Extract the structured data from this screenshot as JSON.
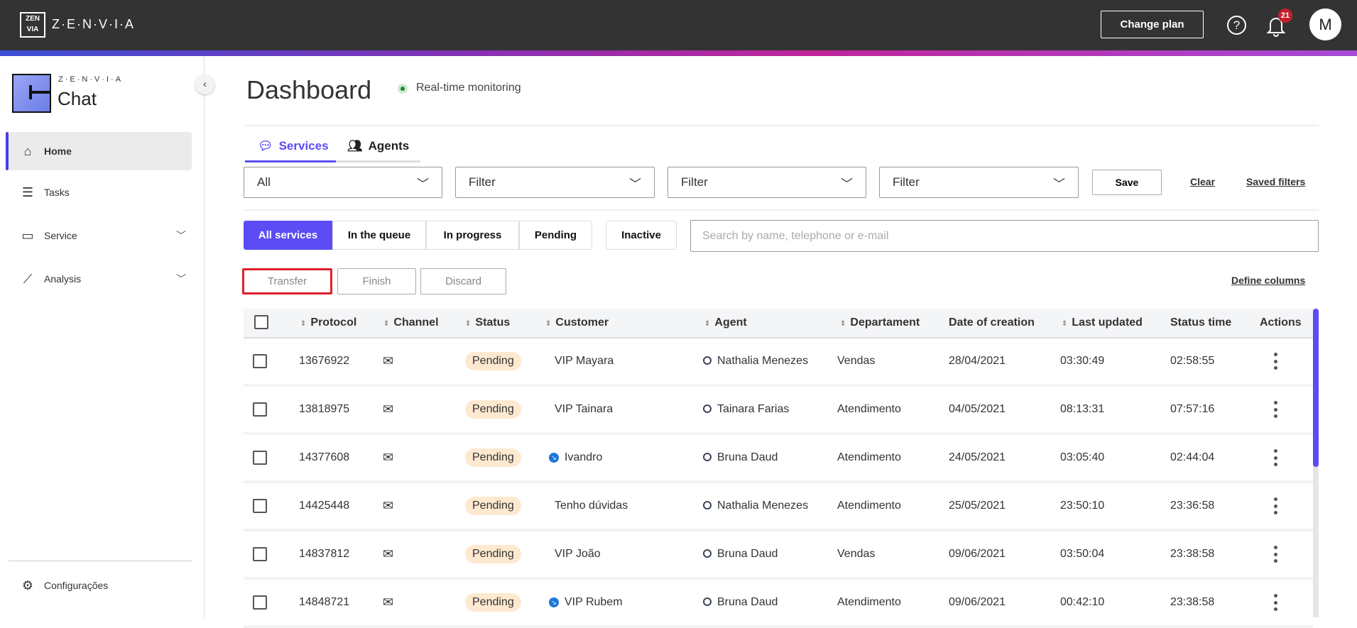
{
  "topbar": {
    "logo_glyph": "ZEN VIA",
    "brand": "Z·E·N·V·I·A",
    "change_plan": "Change plan",
    "help_icon": "question-circle-icon",
    "notifications_count": "21",
    "avatar_initial": "M"
  },
  "sidebar": {
    "product_brand": "Z·E·N·V·I·A",
    "product_name": "Chat",
    "items": [
      {
        "label": "Home",
        "icon": "home-icon",
        "active": true
      },
      {
        "label": "Tasks",
        "icon": "tasks-icon"
      },
      {
        "label": "Service",
        "icon": "chat-icon",
        "expandable": true
      },
      {
        "label": "Analysis",
        "icon": "chart-icon",
        "expandable": true
      }
    ],
    "settings": "Configurações"
  },
  "header": {
    "title": "Dashboard",
    "status": "Real-time monitoring"
  },
  "tabs": [
    {
      "label": "Services",
      "active": true
    },
    {
      "label": "Agents"
    }
  ],
  "filters": {
    "selects": [
      "All",
      "Filter",
      "Filter",
      "Filter"
    ],
    "save": "Save",
    "clear": "Clear",
    "saved_filters": "Saved filters"
  },
  "segments": [
    {
      "label": "All services",
      "active": true
    },
    {
      "label": "In the queue"
    },
    {
      "label": "In progress"
    },
    {
      "label": "Pending"
    }
  ],
  "inactive": "Inactive",
  "search": {
    "placeholder": "Search by name, telephone or e-mail",
    "value": ""
  },
  "actions": {
    "transfer": "Transfer",
    "finish": "Finish",
    "discard": "Discard",
    "define_columns": "Define columns"
  },
  "accent": "#5b4cf5",
  "table": {
    "columns": [
      "Protocol",
      "Channel",
      "Status",
      "Customer",
      "Agent",
      "Departament",
      "Date of creation",
      "Last updated",
      "Status time",
      "Actions"
    ],
    "rows": [
      {
        "protocol": "13676922",
        "channel": "email",
        "status": "Pending",
        "customer": "VIP Mayara",
        "transferred": false,
        "agent": "Nathalia Menezes",
        "department": "Vendas",
        "created": "28/04/2021",
        "updated": "03:30:49",
        "status_time": "02:58:55"
      },
      {
        "protocol": "13818975",
        "channel": "email",
        "status": "Pending",
        "customer": "VIP Tainara",
        "transferred": false,
        "agent": "Tainara Farias",
        "department": "Atendimento",
        "created": "04/05/2021",
        "updated": "08:13:31",
        "status_time": "07:57:16"
      },
      {
        "protocol": "14377608",
        "channel": "email",
        "status": "Pending",
        "customer": "Ivandro",
        "transferred": true,
        "agent": "Bruna Daud",
        "department": "Atendimento",
        "created": "24/05/2021",
        "updated": "03:05:40",
        "status_time": "02:44:04"
      },
      {
        "protocol": "14425448",
        "channel": "email",
        "status": "Pending",
        "customer": "Tenho dúvidas",
        "transferred": false,
        "agent": "Nathalia Menezes",
        "department": "Atendimento",
        "created": "25/05/2021",
        "updated": "23:50:10",
        "status_time": "23:36:58"
      },
      {
        "protocol": "14837812",
        "channel": "email",
        "status": "Pending",
        "customer": "VIP João",
        "transferred": false,
        "agent": "Bruna Daud",
        "department": "Vendas",
        "created": "09/06/2021",
        "updated": "03:50:04",
        "status_time": "23:38:58"
      },
      {
        "protocol": "14848721",
        "channel": "email",
        "status": "Pending",
        "customer": "VIP Rubem",
        "transferred": true,
        "agent": "Bruna Daud",
        "department": "Atendimento",
        "created": "09/06/2021",
        "updated": "00:42:10",
        "status_time": "23:38:58"
      }
    ]
  }
}
